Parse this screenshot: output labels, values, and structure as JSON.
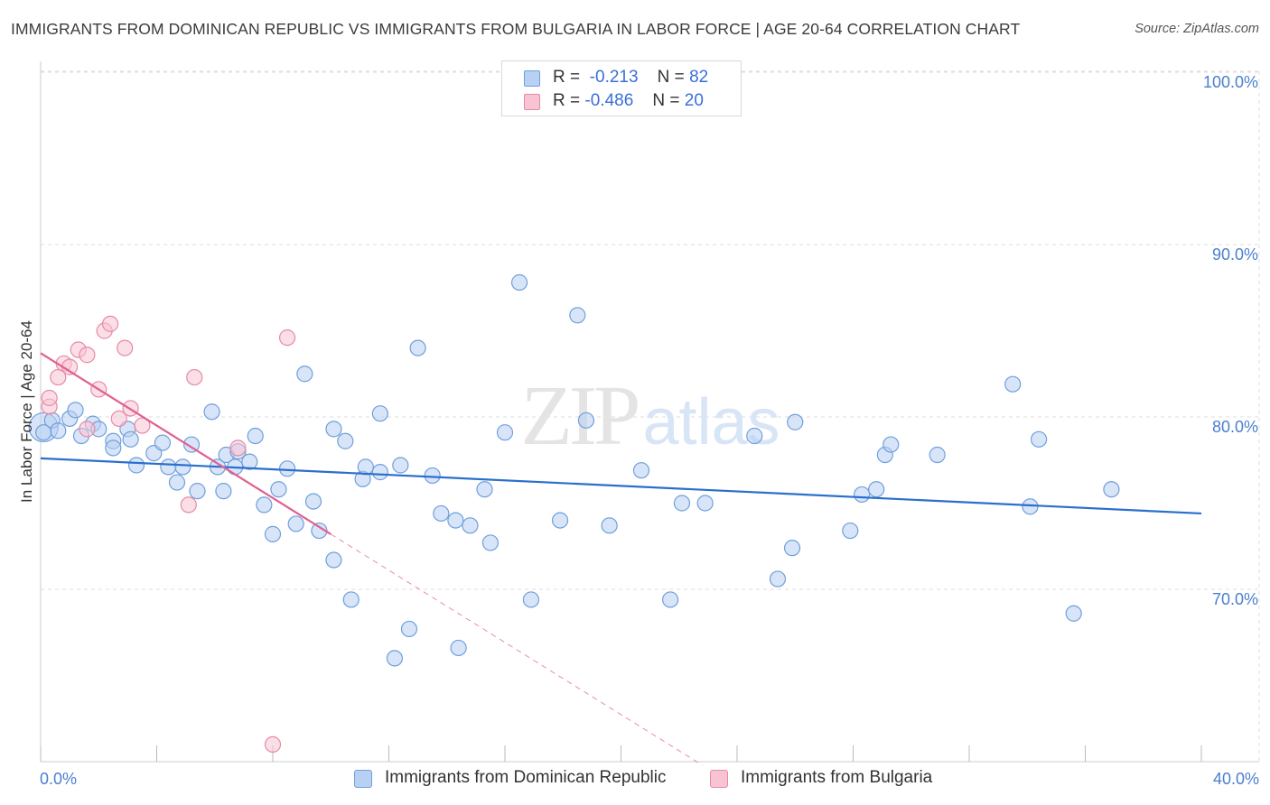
{
  "header": {
    "title": "IMMIGRANTS FROM DOMINICAN REPUBLIC VS IMMIGRANTS FROM BULGARIA IN LABOR FORCE | AGE 20-64 CORRELATION CHART",
    "source": "Source: ZipAtlas.com"
  },
  "legend": {
    "r_label": "R =",
    "n_label": "N =",
    "series1": {
      "r": "-0.213",
      "n": "82"
    },
    "series2": {
      "r": "-0.486",
      "n": "20"
    }
  },
  "bottom_legend": {
    "series1": "Immigrants from Dominican Republic",
    "series2": "Immigrants from Bulgaria"
  },
  "colors": {
    "blue_fill": "#b8d0f2",
    "blue_stroke": "#6f9fdc",
    "blue_line": "#2a6fce",
    "pink_fill": "#f8c4d4",
    "pink_stroke": "#e889a6",
    "pink_line": "#e06090",
    "axis_text": "#4a7fd0"
  },
  "chart_data": {
    "type": "scatter",
    "title": "IMMIGRANTS FROM DOMINICAN REPUBLIC VS IMMIGRANTS FROM BULGARIA IN LABOR FORCE | AGE 20-64 CORRELATION CHART",
    "xlabel": "",
    "ylabel": "In Labor Force | Age 20-64",
    "xlim": [
      0,
      40
    ],
    "ylim": [
      60,
      102
    ],
    "x_tick_labels": [
      "0.0%",
      "40.0%"
    ],
    "y_ticks": [
      70,
      80,
      90,
      100
    ],
    "y_tick_labels": [
      "70.0%",
      "80.0%",
      "90.0%",
      "100.0%"
    ],
    "watermark": "ZIPatlas",
    "series": [
      {
        "name": "Immigrants from Dominican Republic",
        "r": -0.213,
        "n": 82,
        "trend": {
          "x": [
            0,
            40
          ],
          "y": [
            77.6,
            74.4
          ]
        },
        "points": [
          [
            0.1,
            79.4
          ],
          [
            0.4,
            79.8
          ],
          [
            0.6,
            79.2
          ],
          [
            1.0,
            79.9
          ],
          [
            1.2,
            80.4
          ],
          [
            1.4,
            78.9
          ],
          [
            1.8,
            79.6
          ],
          [
            2.0,
            79.3
          ],
          [
            2.5,
            78.6
          ],
          [
            2.5,
            78.2
          ],
          [
            3.0,
            79.3
          ],
          [
            3.1,
            78.7
          ],
          [
            3.3,
            77.2
          ],
          [
            3.9,
            77.9
          ],
          [
            4.2,
            78.5
          ],
          [
            4.4,
            77.1
          ],
          [
            4.7,
            76.2
          ],
          [
            4.9,
            77.1
          ],
          [
            5.2,
            78.4
          ],
          [
            5.4,
            75.7
          ],
          [
            5.9,
            80.3
          ],
          [
            6.1,
            77.1
          ],
          [
            6.3,
            75.7
          ],
          [
            6.4,
            77.8
          ],
          [
            6.7,
            77.1
          ],
          [
            6.8,
            78.0
          ],
          [
            7.2,
            77.4
          ],
          [
            7.4,
            78.9
          ],
          [
            7.7,
            74.9
          ],
          [
            8.0,
            73.2
          ],
          [
            8.2,
            75.8
          ],
          [
            8.5,
            77.0
          ],
          [
            8.8,
            73.8
          ],
          [
            9.1,
            82.5
          ],
          [
            9.4,
            75.1
          ],
          [
            9.6,
            73.4
          ],
          [
            10.1,
            79.3
          ],
          [
            10.1,
            71.7
          ],
          [
            10.5,
            78.6
          ],
          [
            10.7,
            69.4
          ],
          [
            11.1,
            76.4
          ],
          [
            11.2,
            77.1
          ],
          [
            11.7,
            76.8
          ],
          [
            11.7,
            80.2
          ],
          [
            12.2,
            66.0
          ],
          [
            12.4,
            77.2
          ],
          [
            12.7,
            67.7
          ],
          [
            13.0,
            84.0
          ],
          [
            13.5,
            76.6
          ],
          [
            13.8,
            74.4
          ],
          [
            14.3,
            74.0
          ],
          [
            14.4,
            66.6
          ],
          [
            14.8,
            73.7
          ],
          [
            15.3,
            75.8
          ],
          [
            15.5,
            72.7
          ],
          [
            16.0,
            79.1
          ],
          [
            16.5,
            87.8
          ],
          [
            16.9,
            69.4
          ],
          [
            17.9,
            74.0
          ],
          [
            18.5,
            85.9
          ],
          [
            18.8,
            79.8
          ],
          [
            19.6,
            73.7
          ],
          [
            20.7,
            76.9
          ],
          [
            21.7,
            69.4
          ],
          [
            22.1,
            75.0
          ],
          [
            22.9,
            75.0
          ],
          [
            24.6,
            78.9
          ],
          [
            25.4,
            70.6
          ],
          [
            25.9,
            72.4
          ],
          [
            26.0,
            79.7
          ],
          [
            27.9,
            73.4
          ],
          [
            28.3,
            75.5
          ],
          [
            28.8,
            75.8
          ],
          [
            29.1,
            77.8
          ],
          [
            29.3,
            78.4
          ],
          [
            30.9,
            77.8
          ],
          [
            33.5,
            81.9
          ],
          [
            34.1,
            74.8
          ],
          [
            34.4,
            78.7
          ],
          [
            35.6,
            68.6
          ],
          [
            36.9,
            75.8
          ],
          [
            0.1,
            79.1
          ]
        ]
      },
      {
        "name": "Immigrants from Bulgaria",
        "r": -0.486,
        "n": 20,
        "trend": {
          "x": [
            0,
            10.0
          ],
          "y": [
            83.7,
            73.2
          ]
        },
        "trend_dashed": {
          "x": [
            10.0,
            22.8
          ],
          "y": [
            73.2,
            59.8
          ]
        },
        "points": [
          [
            0.3,
            80.6
          ],
          [
            0.3,
            81.1
          ],
          [
            0.6,
            82.3
          ],
          [
            0.8,
            83.1
          ],
          [
            1.0,
            82.9
          ],
          [
            1.3,
            83.9
          ],
          [
            1.6,
            83.6
          ],
          [
            1.6,
            79.3
          ],
          [
            2.0,
            81.6
          ],
          [
            2.2,
            85.0
          ],
          [
            2.4,
            85.4
          ],
          [
            2.7,
            79.9
          ],
          [
            2.9,
            84.0
          ],
          [
            3.1,
            80.5
          ],
          [
            3.5,
            79.5
          ],
          [
            5.1,
            74.9
          ],
          [
            5.3,
            82.3
          ],
          [
            6.8,
            78.2
          ],
          [
            8.0,
            61.0
          ],
          [
            8.5,
            84.6
          ]
        ]
      }
    ]
  }
}
